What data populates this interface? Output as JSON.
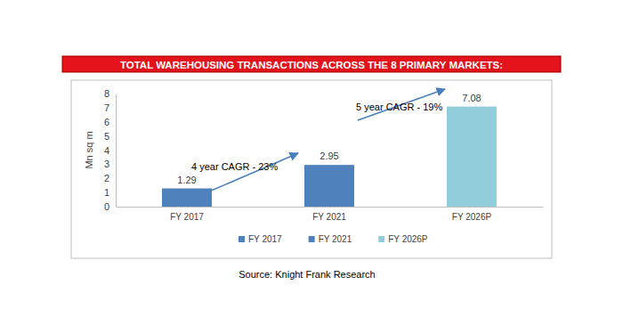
{
  "chart_data": {
    "type": "bar",
    "title": "TOTAL WAREHOUSING TRANSACTIONS ACROSS THE 8 PRIMARY MARKETS:",
    "y_label": "Mn sq m",
    "categories": [
      "FY 2017",
      "FY 2021",
      "FY 2026P"
    ],
    "series": [
      {
        "name": "FY 2017",
        "color": "#4f81bd",
        "values": [
          1.29,
          null,
          null
        ]
      },
      {
        "name": "FY 2021",
        "color": "#4f81bd",
        "values": [
          null,
          2.95,
          null
        ]
      },
      {
        "name": "FY 2026P",
        "color": "#92cddc",
        "values": [
          null,
          null,
          7.08
        ]
      }
    ],
    "ylim": [
      0,
      8
    ],
    "yticks": [
      0,
      1,
      2,
      3,
      4,
      5,
      6,
      7,
      8
    ],
    "grid": false,
    "legend": "bottom",
    "data_labels": true,
    "annotations": [
      "4 year CAGR - 23%",
      "5 year CAGR - 19%"
    ],
    "source": "Source: Knight Frank Research"
  }
}
